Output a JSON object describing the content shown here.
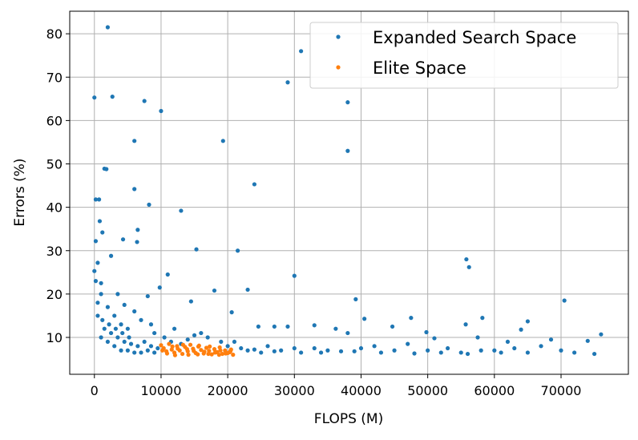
{
  "chart_data": {
    "type": "scatter",
    "xlabel": "FLOPS (M)",
    "ylabel": "Errors (%)",
    "xlim": [
      -3700,
      80100
    ],
    "ylim": [
      1.5,
      85.2
    ],
    "xticks": [
      0,
      10000,
      20000,
      30000,
      40000,
      50000,
      60000,
      70000
    ],
    "yticks": [
      10,
      20,
      30,
      40,
      50,
      60,
      70,
      80
    ],
    "grid": true,
    "legend": "upper right",
    "series": [
      {
        "name": "Expanded Search Space",
        "color": "#1f77b4",
        "x": [
          2000,
          0,
          2700,
          7500,
          10000,
          6000,
          19300,
          31000,
          29000,
          38000,
          38000,
          1500,
          1800,
          200,
          700,
          6000,
          8200,
          13000,
          24000,
          800,
          1200,
          6500,
          6400,
          4300,
          200,
          15300,
          21500,
          500,
          2500,
          55800,
          56200,
          30000,
          11000,
          0,
          200,
          1000,
          9800,
          18000,
          23000,
          39200,
          70500,
          8000,
          14500,
          20600,
          40500,
          47500,
          58200,
          65000,
          55700,
          64000,
          44700,
          24600,
          33000,
          27000,
          29000,
          36200,
          38000,
          49800,
          76000,
          74000,
          68500,
          57500,
          51000,
          62000,
          2000,
          1000,
          500,
          3000,
          4000,
          5000,
          3500,
          4500,
          6000,
          7000,
          8500,
          9000,
          12000,
          16000,
          21000,
          26000,
          30000,
          35000,
          40000,
          45000,
          50000,
          55000,
          60000,
          65000,
          70000,
          72000,
          75000,
          67000,
          63000,
          42000,
          47000,
          53000,
          58000,
          33000,
          37000,
          23000,
          28000,
          25000,
          1000,
          2000,
          3000,
          4000,
          5000,
          6000,
          7000,
          8000,
          9000,
          1500,
          2500,
          3500,
          4500,
          5500,
          6500,
          7500,
          8500,
          9500,
          500,
          1200,
          2200,
          3200,
          4200,
          5200,
          10500,
          11500,
          13000,
          14000,
          15000,
          17000,
          19000,
          20000,
          22000,
          24000,
          27000,
          31000,
          34000,
          39000,
          43000,
          48000,
          52000,
          56000,
          61000
        ],
        "values": [
          81.5,
          65.3,
          65.5,
          64.5,
          62.2,
          55.3,
          55.3,
          76,
          68.8,
          64.2,
          53,
          48.9,
          48.8,
          41.8,
          41.8,
          44.2,
          40.6,
          39.2,
          45.3,
          36.8,
          34.2,
          34.8,
          32,
          32.6,
          32.2,
          30.3,
          30,
          27.2,
          28.8,
          28,
          26.2,
          24.2,
          24.5,
          25.3,
          23,
          22.5,
          21.5,
          20.8,
          21,
          18.8,
          18.5,
          19.5,
          18.3,
          15.8,
          14.3,
          14.5,
          14.5,
          13.7,
          13,
          11.8,
          12.5,
          12.5,
          12.8,
          12.5,
          12.5,
          12,
          11,
          11.2,
          10.7,
          9.2,
          9.5,
          10,
          9.8,
          9,
          17,
          20,
          18,
          15,
          13,
          12,
          20,
          17.5,
          16,
          14,
          13,
          11,
          12,
          11,
          9,
          8,
          7.5,
          7,
          7.5,
          7,
          7,
          6.5,
          7,
          6.5,
          7,
          6.5,
          6.2,
          8,
          7.5,
          8,
          8.5,
          7.5,
          7,
          7.5,
          6.8,
          7,
          7,
          6.5,
          10,
          9,
          8,
          7,
          7,
          6.5,
          6.5,
          7,
          6.5,
          12,
          11,
          10,
          9,
          8.5,
          8,
          9,
          8,
          7.5,
          15,
          14,
          13,
          12,
          11,
          10,
          10,
          9,
          8.5,
          9.5,
          10.5,
          10,
          9,
          8,
          7.5,
          7.2,
          6.8,
          6.5,
          6.5,
          6.8,
          6.5,
          6.3,
          6.5,
          6.2,
          6.5
        ]
      },
      {
        "name": "Elite Space",
        "color": "#ff7f0e",
        "x": [
          10000,
          10400,
          10800,
          11200,
          11600,
          12000,
          12400,
          12800,
          13200,
          13600,
          14000,
          14400,
          14800,
          15200,
          15600,
          16000,
          16400,
          16800,
          17200,
          17600,
          18000,
          18400,
          18800,
          19200,
          19600,
          20000,
          20400,
          20800,
          10200,
          10900,
          11700,
          12500,
          13300,
          14100,
          14900,
          15700,
          16500,
          17300,
          18100,
          18900,
          19700,
          20500,
          12100,
          13900,
          15500,
          17100,
          18700,
          20300
        ],
        "values": [
          8.2,
          7.5,
          6.8,
          8.5,
          7.2,
          6.5,
          8.0,
          7.0,
          6.2,
          7.8,
          6.8,
          8.3,
          7.4,
          6.4,
          7.9,
          7.1,
          6.3,
          7.6,
          6.9,
          6.1,
          7.3,
          6.6,
          7.7,
          6.2,
          7.0,
          6.4,
          6.8,
          6.0,
          7.0,
          6.3,
          7.9,
          7.4,
          8.3,
          6.0,
          6.9,
          8.1,
          6.7,
          7.9,
          6.5,
          7.0,
          6.3,
          7.2,
          5.9,
          7.3,
          6.1,
          6.2,
          6.0,
          6.6
        ]
      }
    ]
  }
}
